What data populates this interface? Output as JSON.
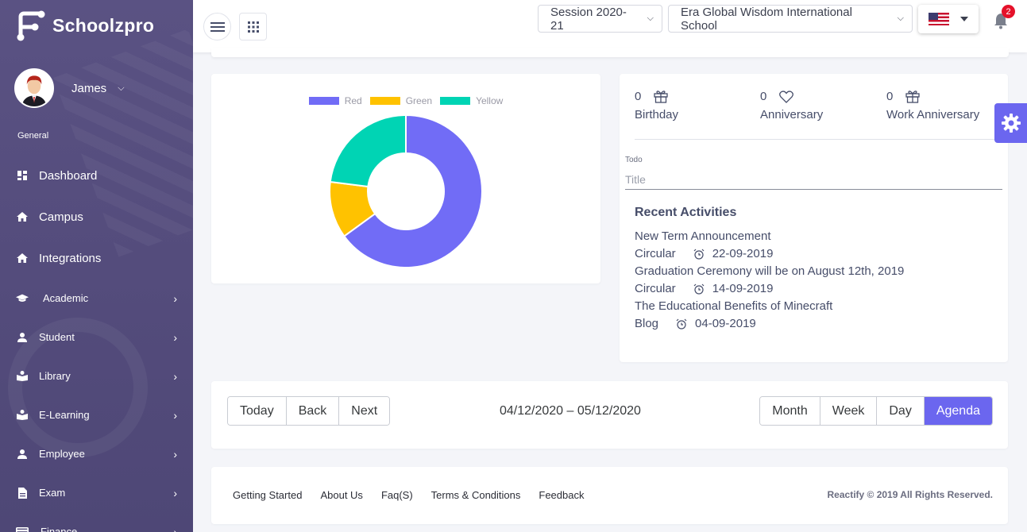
{
  "brand": {
    "name": "Schoolzpro"
  },
  "user": {
    "name": "James"
  },
  "sidebar": {
    "section": "General",
    "items": [
      {
        "label": "Dashboard",
        "icon": "dashboard-icon",
        "chevron": false
      },
      {
        "label": "Campus",
        "icon": "home-icon",
        "chevron": false
      },
      {
        "label": "Integrations",
        "icon": "home-icon",
        "chevron": false
      },
      {
        "label": "Academic",
        "icon": "graduation-cap-icon",
        "chevron": true
      },
      {
        "label": "Student",
        "icon": "person-icon",
        "chevron": true
      },
      {
        "label": "Library",
        "icon": "book-icon",
        "chevron": true
      },
      {
        "label": "E-Learning",
        "icon": "book-icon",
        "chevron": true
      },
      {
        "label": "Employee",
        "icon": "person-icon",
        "chevron": true
      },
      {
        "label": "Exam",
        "icon": "document-icon",
        "chevron": true
      },
      {
        "label": "Finance",
        "icon": "card-icon",
        "chevron": true
      }
    ]
  },
  "header": {
    "session": "Session 2020-21",
    "school": "Era Global Wisdom International School",
    "notifications": "2"
  },
  "chart_data": {
    "type": "pie",
    "variant": "doughnut",
    "categories": [
      "Red",
      "Green",
      "Yellow"
    ],
    "values": [
      65,
      12,
      23
    ],
    "colors": [
      "#716cf6",
      "#ffc200",
      "#00d4b4"
    ],
    "legend": "top"
  },
  "events": {
    "birthday": {
      "count": "0",
      "label": "Birthday"
    },
    "anniversary": {
      "count": "0",
      "label": "Anniversary"
    },
    "work_anniversary": {
      "count": "0",
      "label": "Work Anniversary"
    }
  },
  "todo": {
    "label": "Todo",
    "placeholder": "Title"
  },
  "recent": {
    "title": "Recent Activities",
    "items": [
      {
        "title": "New Term Announcement",
        "type": "Circular",
        "date": "22-09-2019"
      },
      {
        "title": "Graduation Ceremony will be on August 12th, 2019",
        "type": "Circular",
        "date": "14-09-2019"
      },
      {
        "title": "The Educational Benefits of Minecraft",
        "type": "Blog",
        "date": "04-09-2019"
      }
    ]
  },
  "calendar": {
    "nav": [
      "Today",
      "Back",
      "Next"
    ],
    "range": "04/12/2020 – 05/12/2020",
    "views": [
      "Month",
      "Week",
      "Day",
      "Agenda"
    ],
    "active_view": "Agenda"
  },
  "footer": {
    "links": [
      "Getting Started",
      "About Us",
      "Faq(S)",
      "Terms & Conditions",
      "Feedback"
    ],
    "copyright": "Reactify © 2019 All Rights Reserved."
  }
}
